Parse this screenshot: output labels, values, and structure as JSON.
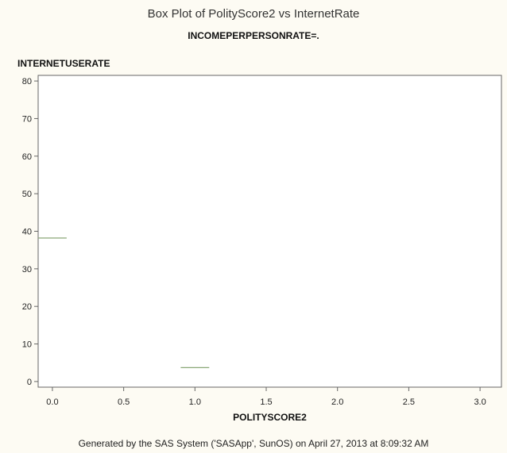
{
  "chart_data": {
    "type": "box",
    "title": "Box Plot of PolityScore2 vs InternetRate",
    "subtitle": "INCOMEPERPERSONRATE=.",
    "xlabel": "POLITYSCORE2",
    "ylabel": "INTERNETUSERATE",
    "xlim": [
      -0.1,
      3.15
    ],
    "ylim": [
      -1.5,
      81.5
    ],
    "x_ticks": [
      0,
      0.5,
      1,
      1.5,
      2,
      2.5,
      3
    ],
    "x_tick_labels": [
      "0.0",
      "0.5",
      "1.0",
      "1.5",
      "2.0",
      "2.5",
      "3.0"
    ],
    "y_ticks": [
      0,
      10,
      20,
      30,
      40,
      50,
      60,
      70,
      80
    ],
    "y_tick_labels": [
      "0",
      "10",
      "20",
      "30",
      "40",
      "50",
      "60",
      "70",
      "80"
    ],
    "boxes": [
      {
        "x": 0,
        "value": 38.2,
        "color": "#8aa878"
      },
      {
        "x": 1,
        "value": 3.7,
        "color": "#8aa878"
      }
    ],
    "grid": false
  },
  "footer": "Generated by the SAS System ('SASApp', SunOS) on April 27, 2013 at 8:09:32 AM"
}
